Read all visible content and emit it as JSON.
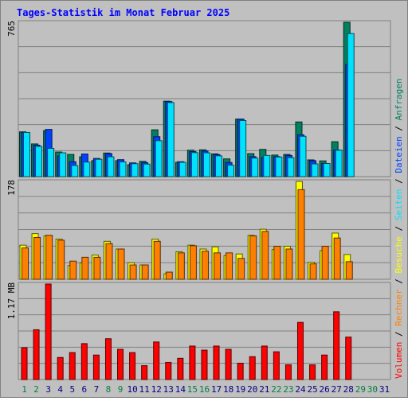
{
  "title": "Tages-Statistik im Monat Februar 2025",
  "colors": {
    "background": "#c0c0c0",
    "panel": "#c0c0c0",
    "gridline": "#808080",
    "title": "#0000ff",
    "weekday_label": "#000080",
    "weekend_label": "#008040",
    "anfragen": "#008060",
    "dateien": "#0040ff",
    "seiten": "#00e0ff",
    "besuche": "#ffff00",
    "rechner": "#ff8000",
    "volumen": "#ff0000"
  },
  "chart_data": [
    {
      "type": "bar",
      "panel": "top",
      "ymax_label": "765",
      "ylim": [
        0,
        765
      ],
      "grid": true,
      "categories": [
        "1",
        "2",
        "3",
        "4",
        "5",
        "6",
        "7",
        "8",
        "9",
        "10",
        "11",
        "12",
        "13",
        "14",
        "15",
        "16",
        "17",
        "18",
        "19",
        "20",
        "21",
        "22",
        "23",
        "24",
        "25",
        "26",
        "27",
        "28",
        "29",
        "30",
        "31"
      ],
      "weekend_days": [
        "1",
        "2",
        "8",
        "9",
        "15",
        "16",
        "22",
        "23",
        "29",
        "30"
      ],
      "series": [
        {
          "name": "Anfragen",
          "values": [
            222,
            162,
            228,
            122,
            110,
            98,
            79,
            117,
            79,
            59,
            76,
            232,
            374,
            71,
            131,
            133,
            113,
            88,
            285,
            114,
            135,
            107,
            110,
            271,
            83,
            78,
            173,
            765,
            0,
            0,
            0
          ]
        },
        {
          "name": "Dateien",
          "values": [
            219,
            156,
            234,
            102,
            74,
            112,
            90,
            114,
            84,
            68,
            69,
            198,
            372,
            74,
            124,
            127,
            109,
            70,
            285,
            99,
            95,
            99,
            105,
            207,
            79,
            65,
            132,
            556,
            0,
            0,
            0
          ]
        },
        {
          "name": "Seiten",
          "values": [
            219,
            150,
            140,
            118,
            55,
            72,
            86,
            98,
            73,
            64,
            62,
            178,
            367,
            71,
            119,
            118,
            103,
            57,
            278,
            92,
            105,
            97,
            94,
            200,
            63,
            65,
            131,
            709,
            0,
            0,
            0
          ]
        }
      ]
    },
    {
      "type": "bar",
      "panel": "middle",
      "ymax_label": "178",
      "ylim": [
        0,
        178
      ],
      "grid": true,
      "categories": [
        "1",
        "2",
        "3",
        "4",
        "5",
        "6",
        "7",
        "8",
        "9",
        "10",
        "11",
        "12",
        "13",
        "14",
        "15",
        "16",
        "17",
        "18",
        "19",
        "20",
        "21",
        "22",
        "23",
        "24",
        "25",
        "26",
        "27",
        "28",
        "29",
        "30",
        "31"
      ],
      "series": [
        {
          "name": "Besuche",
          "values": [
            62,
            83,
            79,
            73,
            25,
            30,
            44,
            69,
            55,
            30,
            26,
            73,
            10,
            50,
            62,
            55,
            59,
            43,
            46,
            80,
            91,
            54,
            60,
            178,
            31,
            52,
            84,
            45,
            0,
            0,
            0
          ]
        },
        {
          "name": "Rechner",
          "values": [
            57,
            76,
            80,
            71,
            33,
            40,
            40,
            65,
            55,
            26,
            26,
            69,
            13,
            48,
            61,
            51,
            48,
            48,
            38,
            79,
            87,
            60,
            55,
            163,
            28,
            60,
            75,
            32,
            0,
            0,
            0
          ]
        }
      ]
    },
    {
      "type": "bar",
      "panel": "bottom",
      "ymax_label": "1.17 MB",
      "ylim": [
        0,
        1.17
      ],
      "grid": true,
      "categories": [
        "1",
        "2",
        "3",
        "4",
        "5",
        "6",
        "7",
        "8",
        "9",
        "10",
        "11",
        "12",
        "13",
        "14",
        "15",
        "16",
        "17",
        "18",
        "19",
        "20",
        "21",
        "22",
        "23",
        "24",
        "25",
        "26",
        "27",
        "28",
        "29",
        "30",
        "31"
      ],
      "series": [
        {
          "name": "Volumen",
          "values": [
            0.39,
            0.61,
            1.17,
            0.27,
            0.33,
            0.44,
            0.3,
            0.5,
            0.37,
            0.33,
            0.17,
            0.46,
            0.21,
            0.26,
            0.41,
            0.36,
            0.41,
            0.37,
            0.2,
            0.28,
            0.41,
            0.34,
            0.18,
            0.7,
            0.18,
            0.3,
            0.83,
            0.52,
            0,
            0,
            0
          ]
        }
      ]
    }
  ],
  "legend": {
    "labels": [
      "Volumen",
      "Rechner",
      "Besuche",
      "Seiten",
      "Dateien",
      "Anfragen"
    ],
    "separator": " / "
  }
}
